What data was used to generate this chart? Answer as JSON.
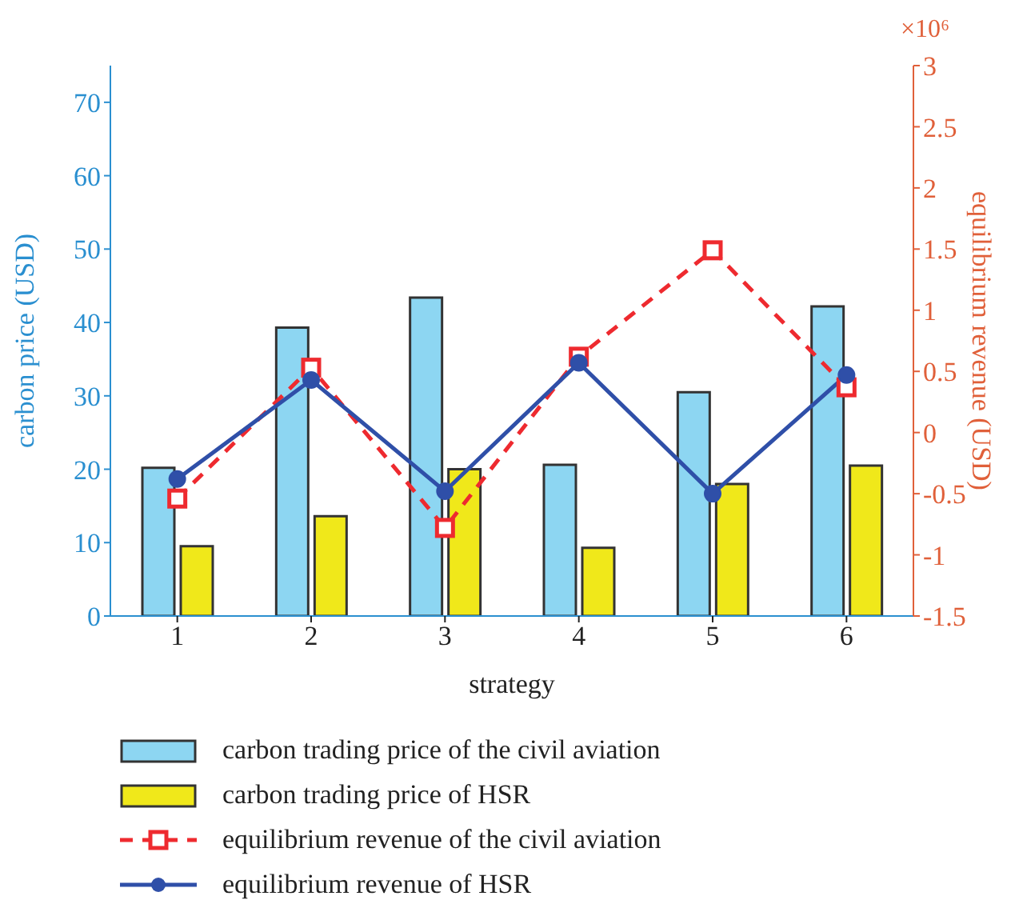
{
  "chart_data": {
    "type": "bar",
    "categories": [
      "1",
      "2",
      "3",
      "4",
      "5",
      "6"
    ],
    "xlabel": "strategy",
    "ylabel": "carbon price (USD)",
    "y2label": "equilibrium revenue (USD)",
    "annotations": [
      "×10⁶"
    ],
    "ylim": [
      0,
      75
    ],
    "yticks": [
      0,
      10,
      20,
      30,
      40,
      50,
      60,
      70
    ],
    "y2lim": [
      -1.5,
      3
    ],
    "y2ticks": [
      -1.5,
      -1,
      -0.5,
      0,
      0.5,
      1,
      1.5,
      2,
      2.5,
      3
    ],
    "series": [
      {
        "name": "carbon trading price of the civil aviation",
        "color": "#8dd6f2",
        "values": [
          20.2,
          39.3,
          43.4,
          20.6,
          30.5,
          42.2
        ]
      },
      {
        "name": "carbon trading price of HSR",
        "color": "#f0e81a",
        "values": [
          9.5,
          13.6,
          20,
          9.3,
          18,
          20.5
        ]
      },
      {
        "name": "equilibrium revenue of the civil aviation",
        "type": "line",
        "axis": "y2",
        "color": "#ee2a2f",
        "marker": "square",
        "line_style": "dashed",
        "values": [
          -0.54,
          0.53,
          -0.78,
          0.62,
          1.49,
          0.37
        ]
      },
      {
        "name": "equilibrium revenue of HSR",
        "type": "line",
        "axis": "y2",
        "color": "#2f4fa8",
        "marker": "circle",
        "line_style": "solid",
        "values": [
          -0.38,
          0.43,
          -0.48,
          0.57,
          -0.5,
          0.47
        ]
      }
    ],
    "legend": "bottom",
    "grid": false
  }
}
